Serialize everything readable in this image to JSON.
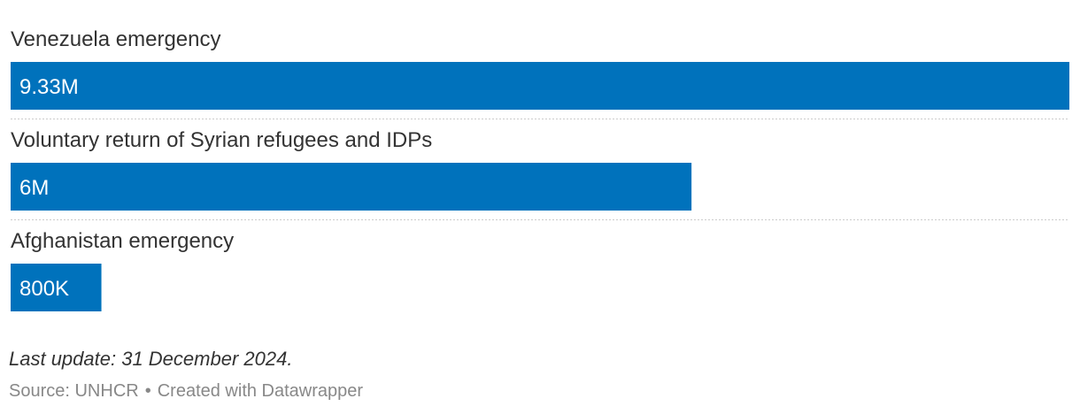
{
  "chart_data": {
    "type": "bar",
    "orientation": "horizontal",
    "categories": [
      "Venezuela emergency",
      "Voluntary return of Syrian refugees and IDPs",
      "Afghanistan emergency"
    ],
    "values": [
      9330000,
      6000000,
      800000
    ],
    "value_labels": [
      "9.33M",
      "6M",
      "800K"
    ],
    "bar_color": "#0072bc",
    "xlim": [
      0,
      9330000
    ],
    "grid": false,
    "legend": "none"
  },
  "notes": "Last update: 31 December 2024.",
  "footer": {
    "source": "Source: UNHCR",
    "separator": "•",
    "credit": "Created with Datawrapper"
  }
}
